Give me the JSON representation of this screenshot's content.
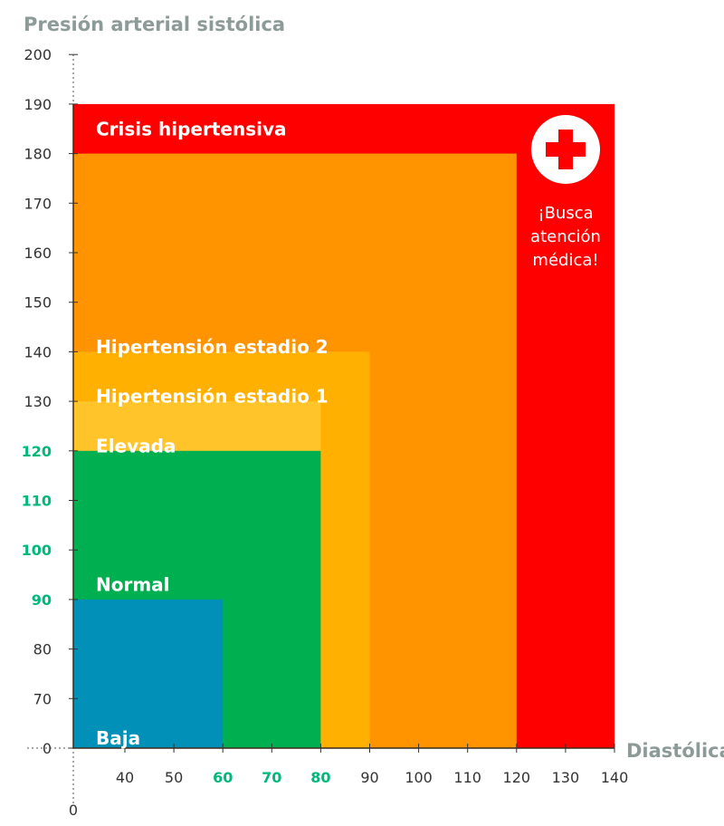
{
  "chart_data": {
    "type": "area",
    "ylabel": "Presión arterial sistólica",
    "xlabel": "Diastólica",
    "y_ticks": [
      200,
      190,
      180,
      170,
      160,
      150,
      140,
      130,
      120,
      110,
      100,
      90,
      80,
      70,
      0
    ],
    "x_ticks": [
      40,
      50,
      60,
      70,
      80,
      90,
      100,
      110,
      120,
      130,
      140
    ],
    "x_origin": "0",
    "highlighted_y_ticks": [
      120,
      110,
      100,
      90
    ],
    "highlighted_x_ticks": [
      60,
      70,
      80
    ],
    "highlight_color": "#00b87a",
    "zones": [
      {
        "name": "Crisis hipertensiva",
        "diastolic_max": 140,
        "systolic_max": 190,
        "color": "#ff0000"
      },
      {
        "name": "Hipertensión estadio 2",
        "diastolic_max": 120,
        "systolic_max": 180,
        "color": "#ff9400"
      },
      {
        "name": "Hipertensión estadio 1",
        "diastolic_max": 90,
        "systolic_max": 140,
        "color": "#ffb000"
      },
      {
        "name": "Elevada",
        "diastolic_max": 80,
        "systolic_max": 130,
        "color": "#ffc42a"
      },
      {
        "name": "Normal",
        "diastolic_max": 80,
        "systolic_max": 120,
        "color": "#00b050"
      },
      {
        "name": "Baja",
        "diastolic_max": 60,
        "systolic_max": 90,
        "color": "#0090b8"
      }
    ],
    "note": [
      "¡Busca",
      "atención",
      "médica!"
    ],
    "icon": "red-cross-icon"
  }
}
